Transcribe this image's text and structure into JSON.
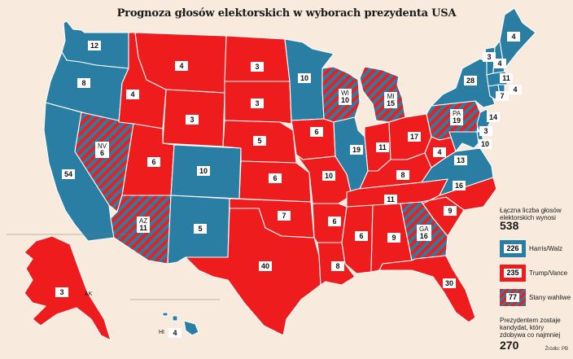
{
  "title": "Prognoza głosów elektorskich w wyborach prezydenta USA",
  "colors": {
    "trump": "#ee1c1c",
    "harris": "#2a7ea4",
    "swing_stripe": "#2a7ea4",
    "background": "#f8ebdd"
  },
  "states": [
    {
      "id": "WA",
      "label": "12",
      "party": "harris"
    },
    {
      "id": "OR",
      "label": "8",
      "party": "harris"
    },
    {
      "id": "CA",
      "label": "54",
      "party": "harris"
    },
    {
      "id": "NV",
      "abbr": "NV",
      "label": "6",
      "party": "swing"
    },
    {
      "id": "ID",
      "label": "4",
      "party": "trump"
    },
    {
      "id": "MT",
      "label": "4",
      "party": "trump"
    },
    {
      "id": "WY",
      "label": "3",
      "party": "trump"
    },
    {
      "id": "UT",
      "label": "6",
      "party": "trump"
    },
    {
      "id": "AZ",
      "abbr": "AZ",
      "label": "11",
      "party": "swing"
    },
    {
      "id": "CO",
      "label": "10",
      "party": "harris"
    },
    {
      "id": "NM",
      "label": "5",
      "party": "harris"
    },
    {
      "id": "ND",
      "label": "3",
      "party": "trump"
    },
    {
      "id": "SD",
      "label": "3",
      "party": "trump"
    },
    {
      "id": "NE",
      "label": "5",
      "party": "trump"
    },
    {
      "id": "KS",
      "label": "6",
      "party": "trump"
    },
    {
      "id": "OK",
      "label": "7",
      "party": "trump"
    },
    {
      "id": "TX",
      "label": "40",
      "party": "trump"
    },
    {
      "id": "MN",
      "label": "10",
      "party": "harris"
    },
    {
      "id": "IA",
      "label": "6",
      "party": "trump"
    },
    {
      "id": "MO",
      "label": "10",
      "party": "trump"
    },
    {
      "id": "AR",
      "label": "6",
      "party": "trump"
    },
    {
      "id": "LA",
      "label": "8",
      "party": "trump"
    },
    {
      "id": "WI",
      "abbr": "WI",
      "label": "10",
      "party": "swing"
    },
    {
      "id": "IL",
      "label": "19",
      "party": "harris"
    },
    {
      "id": "MI",
      "abbr": "MI",
      "label": "15",
      "party": "swing"
    },
    {
      "id": "IN",
      "label": "11",
      "party": "trump"
    },
    {
      "id": "OH",
      "label": "17",
      "party": "trump"
    },
    {
      "id": "KY",
      "label": "8",
      "party": "trump"
    },
    {
      "id": "TN",
      "label": "11",
      "party": "trump"
    },
    {
      "id": "MS",
      "label": "6",
      "party": "trump"
    },
    {
      "id": "AL",
      "label": "9",
      "party": "trump"
    },
    {
      "id": "GA",
      "abbr": "GA",
      "label": "16",
      "party": "swing"
    },
    {
      "id": "FL",
      "label": "30",
      "party": "trump"
    },
    {
      "id": "SC",
      "label": "9",
      "party": "trump"
    },
    {
      "id": "NC",
      "label": "16",
      "party": "trump"
    },
    {
      "id": "VA",
      "label": "13",
      "party": "harris"
    },
    {
      "id": "WV",
      "label": "4",
      "party": "trump"
    },
    {
      "id": "PA",
      "abbr": "PA",
      "label": "19",
      "party": "swing"
    },
    {
      "id": "NY",
      "label": "28",
      "party": "harris"
    },
    {
      "id": "VT",
      "label": "3",
      "party": "harris"
    },
    {
      "id": "NH",
      "label": "4",
      "party": "harris"
    },
    {
      "id": "ME",
      "label": "4",
      "party": "harris"
    },
    {
      "id": "MA",
      "label": "11",
      "party": "harris"
    },
    {
      "id": "RI",
      "label": "4",
      "party": "harris"
    },
    {
      "id": "CT",
      "label": "7",
      "party": "harris"
    },
    {
      "id": "NJ",
      "label": "14",
      "party": "harris"
    },
    {
      "id": "DE",
      "label": "3",
      "party": "harris"
    },
    {
      "id": "MD",
      "label": "10",
      "party": "harris"
    },
    {
      "id": "AK",
      "abbr": "AK",
      "label": "3",
      "party": "trump"
    },
    {
      "id": "HI",
      "abbr": "HI",
      "label": "4",
      "party": "harris"
    }
  ],
  "totals": {
    "caption": "Łączna liczba głosów elektorskich wynosi",
    "value": "538"
  },
  "legend": [
    {
      "value": "226",
      "label": "Harris/Walz",
      "party": "harris"
    },
    {
      "value": "235",
      "label": "Trump/Vance",
      "party": "trump"
    },
    {
      "value": "77",
      "label": "Stany wahliwe",
      "party": "swing"
    }
  ],
  "win": {
    "caption": "Prezydentem zostaje kandydat, który zdobywa co najmniej",
    "value": "270"
  },
  "source": "Źródło: PB"
}
